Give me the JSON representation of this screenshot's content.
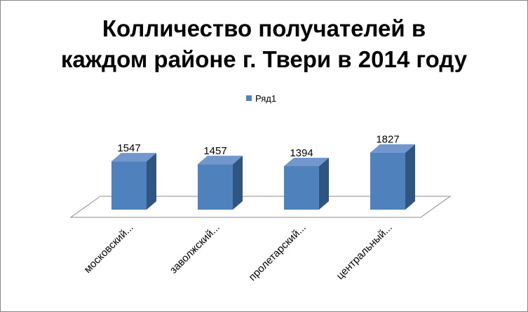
{
  "chart_data": {
    "type": "bar",
    "title_lines": [
      "Колличество получателей в",
      "каждом районе г. Твери в 2014 году"
    ],
    "legend": {
      "position": "top",
      "label": "Ряд1"
    },
    "categories": [
      "московский...",
      "заволжский...",
      "пролетарский...",
      "центральный..."
    ],
    "series": [
      {
        "name": "Ряд1",
        "values": [
          1547,
          1457,
          1394,
          1827
        ]
      }
    ],
    "data_labels": [
      "1547",
      "1457",
      "1394",
      "1827"
    ],
    "style": "3d-column",
    "grid": false,
    "colors": {
      "front": "#4f81bd",
      "side": "#2f5683",
      "top": "#7197cc",
      "floor_stroke": "#8c8c8c"
    }
  }
}
